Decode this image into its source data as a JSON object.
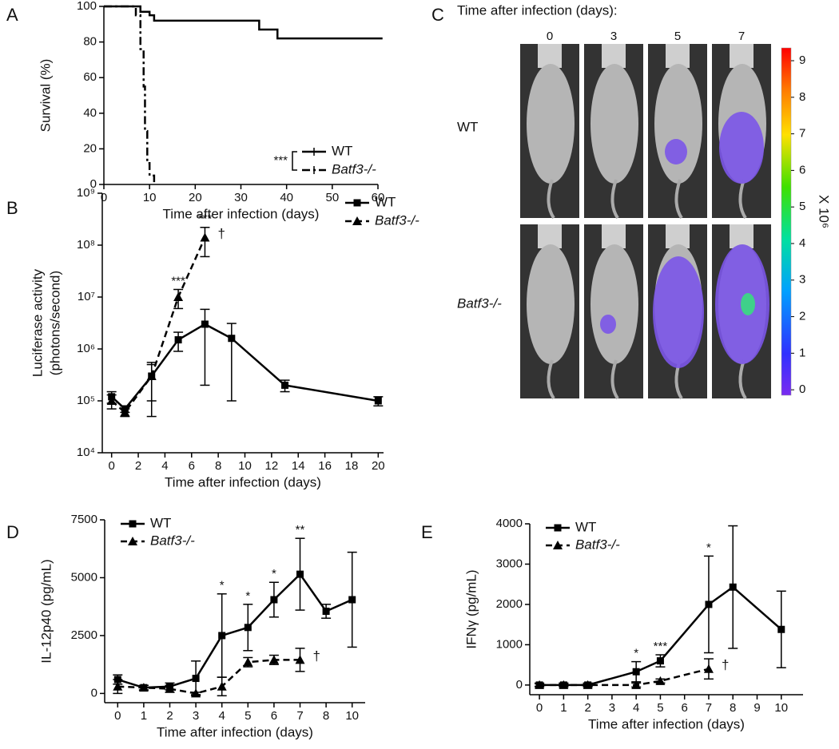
{
  "chart_data": [
    {
      "type": "step",
      "label": "A",
      "x_label": "Time after infection (days)",
      "y_label": [
        "Survival (%)"
      ],
      "xlim": [
        0,
        60
      ],
      "xticks": [
        0,
        10,
        20,
        30,
        40,
        50,
        60
      ],
      "ylim": [
        0,
        100
      ],
      "yticks": [
        0,
        20,
        40,
        60,
        80,
        100
      ],
      "legend": "lower right",
      "legend_note": "***",
      "series": [
        {
          "name": "WT",
          "color": "#000000",
          "linestyle": "solid",
          "x": [
            0,
            8,
            8,
            10,
            10,
            11,
            11,
            34,
            34,
            38,
            38,
            61
          ],
          "values": [
            100,
            100,
            97,
            97,
            95,
            95,
            92,
            92,
            87,
            87,
            82,
            82
          ]
        },
        {
          "name": "Batf3-/-",
          "color": "#000000",
          "linestyle": "dashdot",
          "x": [
            0,
            7,
            7,
            8,
            8,
            8.7,
            8.7,
            9,
            9,
            9.5,
            9.5,
            10,
            10,
            11,
            11
          ],
          "values": [
            100,
            100,
            95,
            95,
            76,
            76,
            55,
            55,
            30,
            30,
            12,
            12,
            5,
            5,
            0
          ]
        }
      ]
    },
    {
      "type": "line",
      "label": "B",
      "x_label": "Time after infection (days)",
      "y_label": [
        "Luciferase activity",
        "(photons/second)"
      ],
      "xlim": [
        -0.7,
        20.4
      ],
      "xticks": [
        0,
        2,
        4,
        6,
        8,
        10,
        12,
        14,
        16,
        18,
        20
      ],
      "ylim": [
        10000,
        1000000000
      ],
      "log_y": true,
      "yticks": [
        {
          "value": 10000,
          "label": "10⁴"
        },
        {
          "value": 100000,
          "label": "10⁵"
        },
        {
          "value": 1000000,
          "label": "10⁶"
        },
        {
          "value": 10000000,
          "label": "10⁷"
        },
        {
          "value": 100000000,
          "label": "10⁸"
        },
        {
          "value": 1000000000,
          "label": "10⁹"
        }
      ],
      "legend": "upper right",
      "series": [
        {
          "name": "WT",
          "color": "#000000",
          "linestyle": "solid",
          "marker": "square",
          "x": [
            0,
            1,
            3,
            5,
            7,
            9,
            13,
            20
          ],
          "values": [
            120000,
            70000,
            300000,
            1500000,
            3000000,
            1600000,
            200000,
            100000
          ],
          "errors": [
            30000,
            10000,
            200000,
            600000,
            2800000,
            1500000,
            50000,
            20000
          ]
        },
        {
          "name": "Batf3-/-",
          "color": "#000000",
          "linestyle": "dashed",
          "marker": "triangle",
          "x": [
            0,
            1,
            3,
            5,
            7
          ],
          "values": [
            100000,
            60000,
            300000,
            10000000,
            140000000
          ],
          "errors": [
            30000,
            10000,
            250000,
            4000000,
            80000000
          ]
        }
      ],
      "annotations": [
        {
          "text": "***",
          "x": 5
        },
        {
          "text": "***",
          "x": 7
        }
      ],
      "end_mark": "†"
    },
    {
      "type": "line",
      "label": "D",
      "x_label": "Time after infection (days)",
      "y_label": [
        "IL-12p40 (pg/mL)"
      ],
      "categories": [
        "0",
        "1",
        "2",
        "3",
        "4",
        "5",
        "6",
        "7",
        "8",
        "10"
      ],
      "ylim": [
        -400,
        7500
      ],
      "yticks": [
        0,
        2500,
        5000,
        7500
      ],
      "legend": "upper left",
      "series": [
        {
          "name": "WT",
          "color": "#000000",
          "linestyle": "solid",
          "marker": "square",
          "values": [
            600,
            250,
            300,
            650,
            2500,
            2850,
            4050,
            5150,
            3550,
            4050
          ],
          "errors": [
            200,
            100,
            150,
            750,
            1800,
            1000,
            750,
            1550,
            300,
            2050
          ]
        },
        {
          "name": "Batf3-/-",
          "color": "#000000",
          "linestyle": "dashed",
          "marker": "triangle",
          "values": [
            300,
            250,
            200,
            0,
            300,
            1350,
            1450,
            1450,
            null,
            null
          ],
          "errors": [
            300,
            100,
            150,
            50,
            400,
            200,
            200,
            500,
            null,
            null
          ]
        }
      ],
      "annotations": [
        {
          "text": "*",
          "x": "4"
        },
        {
          "text": "*",
          "x": "5"
        },
        {
          "text": "*",
          "x": "6"
        },
        {
          "text": "**",
          "x": "7"
        }
      ],
      "end_mark": "†"
    },
    {
      "type": "line",
      "label": "E",
      "x_label": "Time after infection (days)",
      "y_label": [
        "IFNγ (pg/mL)"
      ],
      "xlim": [
        -0.4,
        10.9
      ],
      "xticks": [
        0,
        1,
        2,
        3,
        4,
        5,
        6,
        7,
        8,
        9,
        10
      ],
      "ylim": [
        -240,
        4000
      ],
      "yticks": [
        0,
        1000,
        2000,
        3000,
        4000
      ],
      "legend": "upper left",
      "series": [
        {
          "name": "WT",
          "color": "#000000",
          "linestyle": "solid",
          "marker": "square",
          "x": [
            0,
            1,
            2,
            4,
            5,
            7,
            8,
            10
          ],
          "values": [
            0,
            0,
            0,
            330,
            600,
            2000,
            2430,
            1380
          ],
          "errors": [
            50,
            50,
            50,
            250,
            150,
            1200,
            1520,
            950
          ]
        },
        {
          "name": "Batf3-/-",
          "color": "#000000",
          "linestyle": "dashed",
          "marker": "triangle",
          "x": [
            0,
            1,
            2,
            4,
            5,
            7
          ],
          "values": [
            0,
            0,
            0,
            0,
            100,
            400
          ],
          "errors": [
            30,
            30,
            30,
            50,
            50,
            250
          ]
        }
      ],
      "annotations": [
        {
          "text": "*",
          "x": 4
        },
        {
          "text": "***",
          "x": 5
        },
        {
          "text": "*",
          "x": 7
        }
      ],
      "end_mark": "†"
    }
  ],
  "imaging": {
    "label": "C",
    "title": "Time after infection (days):",
    "columns": [
      "0",
      "3",
      "5",
      "7"
    ],
    "rows": [
      "WT",
      "Batf3-/-"
    ],
    "colorbar": {
      "lim": [
        -0.15,
        9.35
      ],
      "ticks": [
        0,
        1,
        2,
        3,
        4,
        5,
        6,
        7,
        8,
        9
      ],
      "unit": "X 10⁶"
    }
  }
}
